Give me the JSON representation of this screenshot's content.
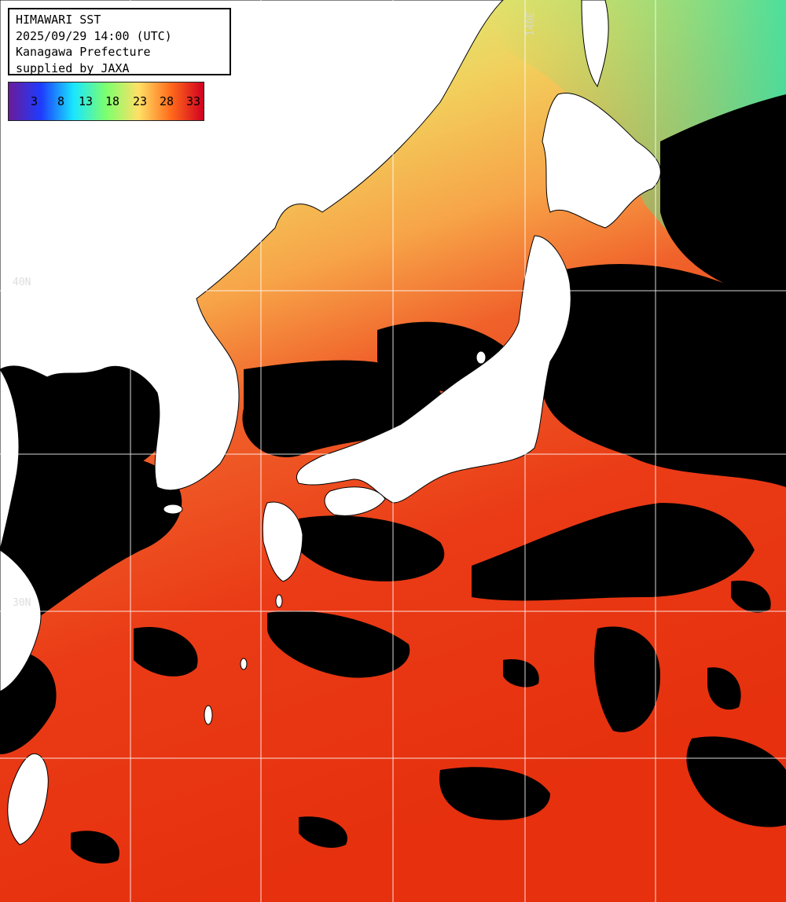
{
  "header": {
    "product": "HIMAWARI SST",
    "datetime": "2025/09/29 14:00 (UTC)",
    "region": "Kanagawa Prefecture",
    "credit": "supplied by JAXA"
  },
  "colorbar": {
    "ticks": [
      "3",
      "8",
      "13",
      "18",
      "23",
      "28",
      "33"
    ],
    "colors": [
      "#6a1b9a",
      "#1e3cff",
      "#19e6ff",
      "#7dff6e",
      "#ffe066",
      "#ff6a1a",
      "#d10020"
    ]
  },
  "grid_labels": {
    "lon_140": "140E",
    "lat_upper": "40N",
    "lat_lower": "30N"
  },
  "palette": {
    "land": "#ffffff",
    "cloud": "#000000",
    "grid": "#ffffff"
  }
}
